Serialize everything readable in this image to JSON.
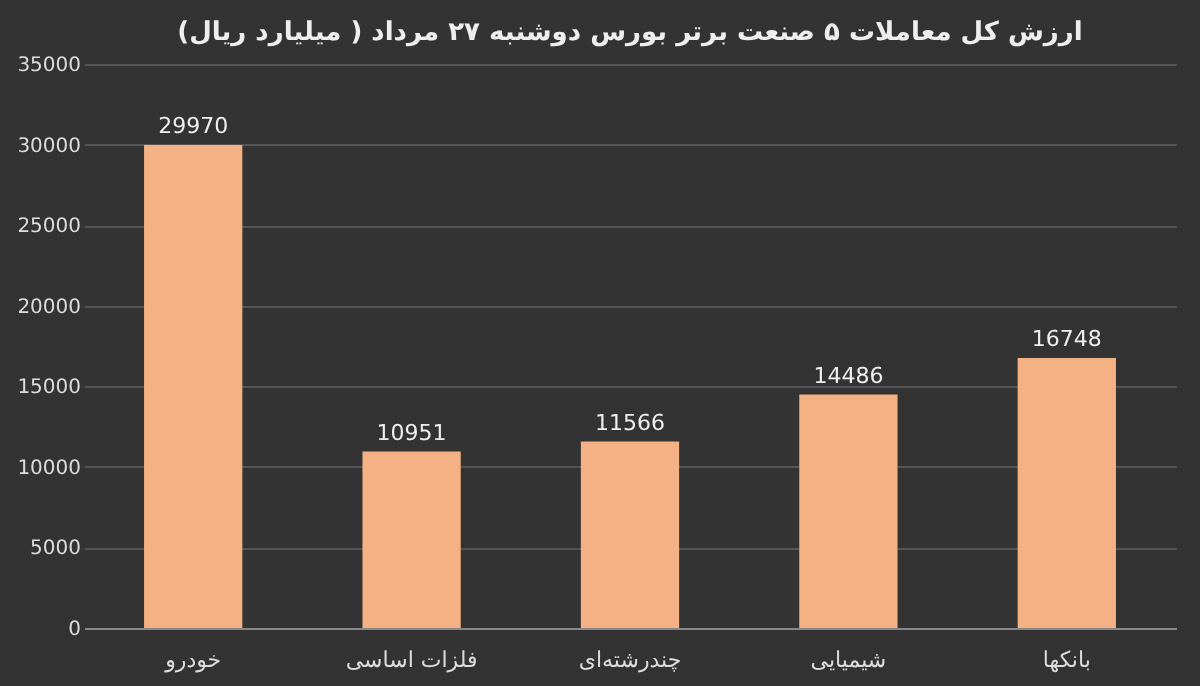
{
  "chart_data": {
    "type": "bar",
    "title": "ارزش کل معاملات ۵ صنعت برتر بورس دوشنبه ۲۷ مرداد ( میلیارد ریال)",
    "categories": [
      "خودرو",
      "فلزات اساسی",
      "چندرشته‌ای",
      "شیمیایی",
      "بانکها"
    ],
    "values": [
      29970,
      10951,
      11566,
      14486,
      16748
    ],
    "color": "#f4b183",
    "ylim": [
      0,
      35000
    ],
    "yticks": [
      0,
      5000,
      10000,
      15000,
      20000,
      25000,
      30000,
      35000
    ],
    "grid": "y",
    "data_labels": true
  }
}
